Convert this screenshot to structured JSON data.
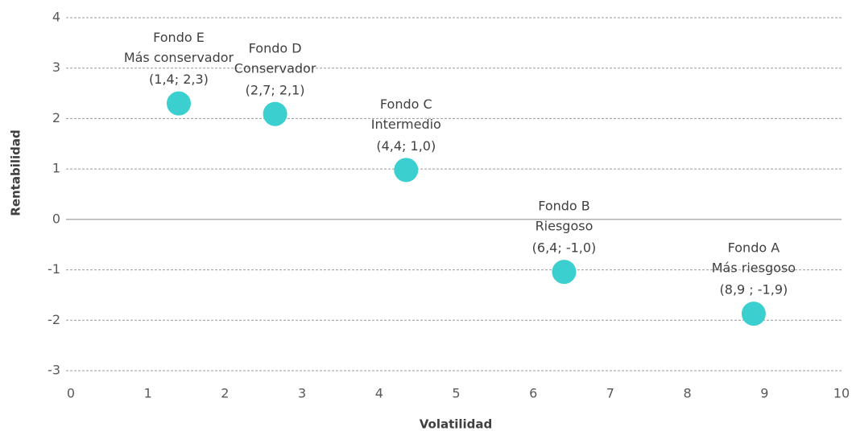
{
  "chart_data": {
    "type": "scatter",
    "x_label": "Volatilidad",
    "y_label": "Rentabilidad",
    "color": "#3ccfcf",
    "names": [
      "Fondo E",
      "Fondo D",
      "Fondo C",
      "Fondo B",
      "Fondo A"
    ],
    "descriptions": [
      "Más conservador",
      "Conservador",
      "Intermedio",
      "Riesgoso",
      "Más riesgoso"
    ],
    "x": [
      1.4,
      2.65,
      4.35,
      6.4,
      8.86
    ],
    "values": [
      2.3,
      2.09,
      0.98,
      -1.04,
      -1.87
    ],
    "value_labels": [
      "(1,4; 2,3)",
      "(2,7; 2,1)",
      "(4,4; 1,0)",
      "(6,4; -1,0)",
      "(8,9 ; -1,9)"
    ],
    "xlim": [
      0,
      10
    ],
    "xticks": [
      0,
      1,
      2,
      3,
      4,
      5,
      6,
      7,
      8,
      9,
      10
    ],
    "ylim": [
      -3,
      4
    ],
    "yticks": [
      -3,
      -2,
      -1,
      0,
      1,
      2,
      3,
      4
    ],
    "grid": true
  }
}
